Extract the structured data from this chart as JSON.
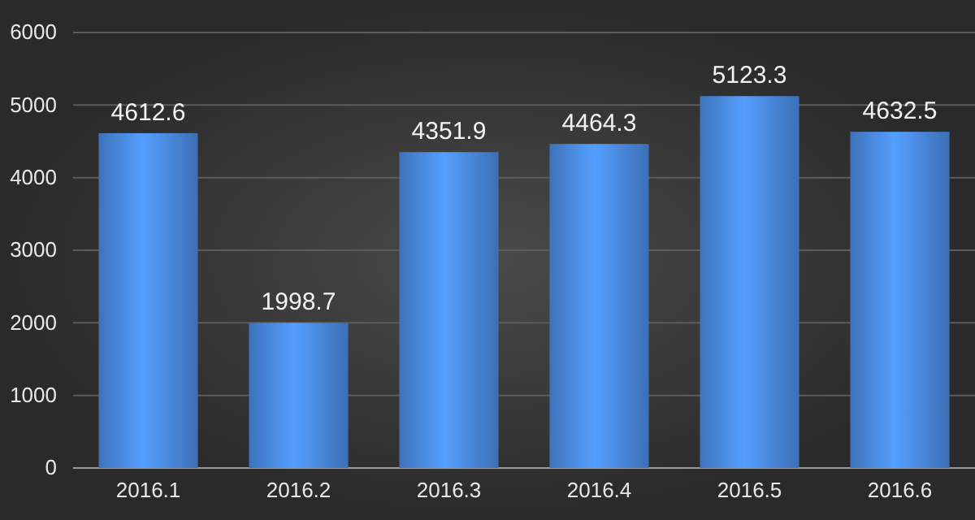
{
  "chart_data": {
    "type": "bar",
    "categories": [
      "2016.1",
      "2016.2",
      "2016.3",
      "2016.4",
      "2016.5",
      "2016.6"
    ],
    "values": [
      4612.6,
      1998.7,
      4351.9,
      4464.3,
      5123.3,
      4632.5
    ],
    "color": "#4a8ae0",
    "ylim": [
      0,
      6000
    ],
    "yticks": [
      0,
      1000,
      2000,
      3000,
      4000,
      5000,
      6000
    ],
    "grid": "y",
    "data_labels": true
  }
}
